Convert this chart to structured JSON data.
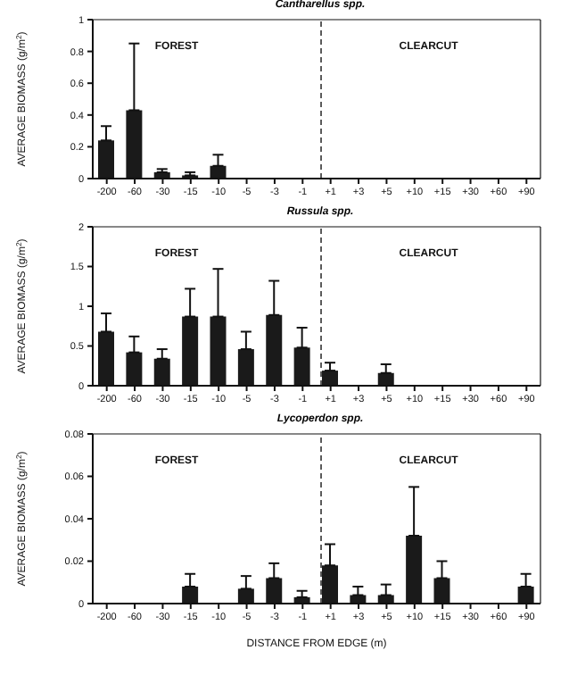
{
  "chart_data": [
    {
      "type": "bar",
      "title": "Cantharellus spp.",
      "ylabel": "AVERAGE BIOMASS (g/m$^{2}$)",
      "categories": [
        "-200",
        "-60",
        "-30",
        "-15",
        "-10",
        "-5",
        "-3",
        "-1",
        "+1",
        "+3",
        "+5",
        "+10",
        "+15",
        "+30",
        "+60",
        "+90"
      ],
      "values": [
        0.24,
        0.43,
        0.04,
        0.02,
        0.08,
        0,
        0,
        0,
        0,
        0,
        0,
        0,
        0,
        0,
        0,
        0
      ],
      "errors": [
        [
          0.24,
          0.33
        ],
        [
          0.43,
          0.85
        ],
        [
          0.04,
          0.06
        ],
        [
          0.02,
          0.04
        ],
        [
          0.08,
          0.15
        ],
        null,
        null,
        null,
        null,
        null,
        null,
        null,
        null,
        null,
        null,
        null
      ],
      "color": "#1a1a1a",
      "ylim": [
        0,
        1
      ],
      "yticks": [
        0,
        0.2,
        0.4,
        0.6,
        0.8,
        1
      ],
      "grid": false,
      "ref_lines": [
        {
          "axis": "x",
          "value": "+1",
          "line_style": "dashed",
          "color": "#333333"
        }
      ],
      "annotations": [
        "FOREST",
        "CLEARCUT"
      ]
    },
    {
      "type": "bar",
      "title": "Russula spp.",
      "ylabel": "AVERAGE BIOMASS (g/m$^{2}$)",
      "categories": [
        "-200",
        "-60",
        "-30",
        "-15",
        "-10",
        "-5",
        "-3",
        "-1",
        "+1",
        "+3",
        "+5",
        "+10",
        "+15",
        "+30",
        "+60",
        "+90"
      ],
      "values": [
        0.68,
        0.42,
        0.34,
        0.87,
        0.87,
        0.46,
        0.89,
        0.48,
        0.19,
        0,
        0.16,
        0,
        0,
        0,
        0,
        0
      ],
      "errors": [
        [
          0.68,
          0.91
        ],
        [
          0.42,
          0.62
        ],
        [
          0.34,
          0.46
        ],
        [
          0.87,
          1.22
        ],
        [
          0.87,
          1.47
        ],
        [
          0.46,
          0.68
        ],
        [
          0.89,
          1.32
        ],
        [
          0.48,
          0.73
        ],
        [
          0.19,
          0.29
        ],
        null,
        [
          0.16,
          0.27
        ],
        null,
        null,
        null,
        null,
        null
      ],
      "color": "#1a1a1a",
      "ylim": [
        0,
        2
      ],
      "yticks": [
        0,
        0.5,
        1,
        1.5,
        2
      ],
      "grid": false,
      "ref_lines": [
        {
          "axis": "x",
          "value": "+1",
          "line_style": "dashed",
          "color": "#333333"
        }
      ],
      "annotations": [
        "FOREST",
        "CLEARCUT"
      ]
    },
    {
      "type": "bar",
      "title": "Lycoperdon spp.",
      "xlabel": "DISTANCE FROM EDGE (m)",
      "ylabel": "AVERAGE BIOMASS (g/m$^{2}$)",
      "categories": [
        "-200",
        "-60",
        "-30",
        "-15",
        "-10",
        "-5",
        "-3",
        "-1",
        "+1",
        "+3",
        "+5",
        "+10",
        "+15",
        "+30",
        "+60",
        "+90"
      ],
      "values": [
        0,
        0,
        0,
        0.008,
        0,
        0.007,
        0.012,
        0.003,
        0.018,
        0.004,
        0.004,
        0.032,
        0.012,
        0,
        0,
        0.008
      ],
      "errors": [
        null,
        null,
        null,
        [
          0.008,
          0.014
        ],
        null,
        [
          0.007,
          0.013
        ],
        [
          0.012,
          0.019
        ],
        [
          0.003,
          0.006
        ],
        [
          0.018,
          0.028
        ],
        [
          0.004,
          0.008
        ],
        [
          0.004,
          0.009
        ],
        [
          0.032,
          0.055
        ],
        [
          0.012,
          0.02
        ],
        null,
        null,
        [
          0.008,
          0.014
        ]
      ],
      "color": "#1a1a1a",
      "ylim": [
        0,
        0.08
      ],
      "yticks": [
        0,
        0.02,
        0.04,
        0.06,
        0.08
      ],
      "grid": false,
      "ref_lines": [
        {
          "axis": "x",
          "value": "+1",
          "line_style": "dashed",
          "color": "#333333"
        }
      ],
      "annotations": [
        "FOREST",
        "CLEARCUT"
      ]
    }
  ]
}
